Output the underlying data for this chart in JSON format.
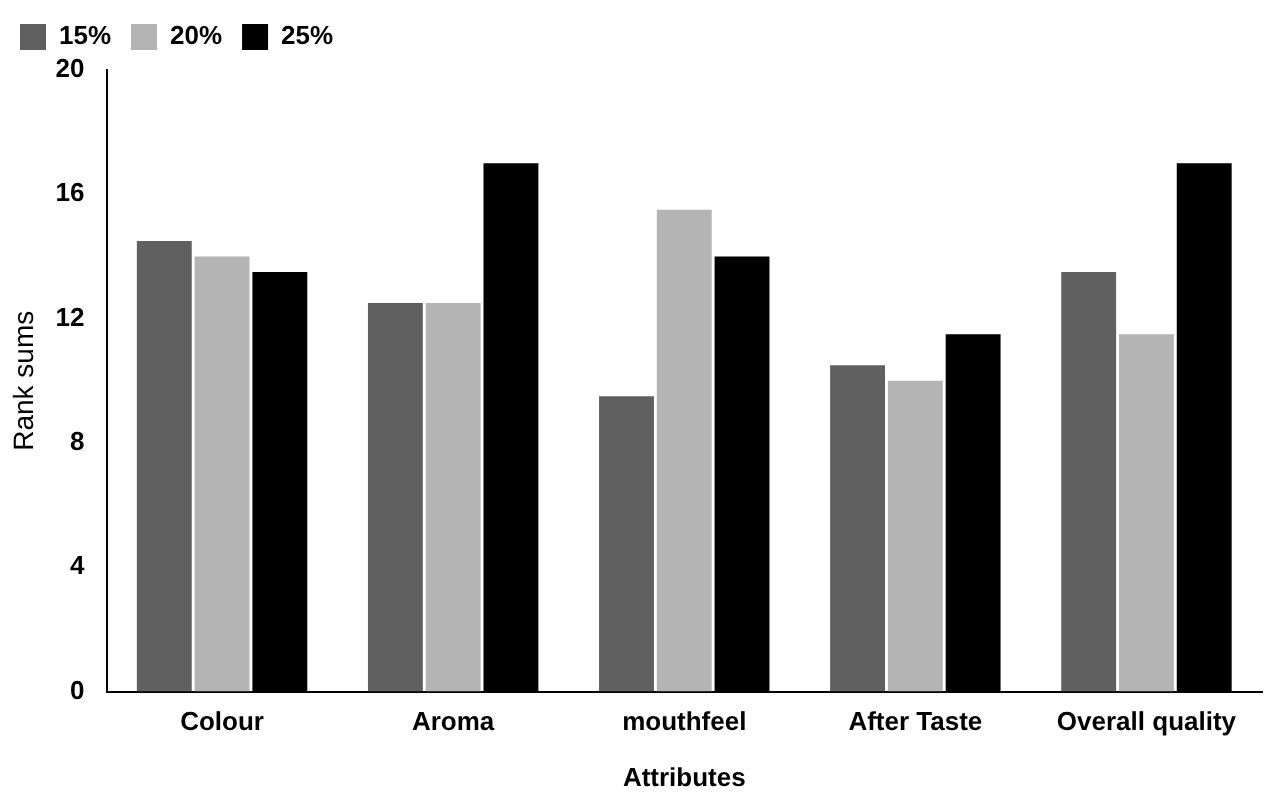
{
  "chart_data": {
    "type": "bar",
    "xlabel": "Attributes",
    "ylabel": "Rank sums",
    "categories": [
      "Colour",
      "Aroma",
      "mouthfeel",
      "After Taste",
      "Overall quality"
    ],
    "series": [
      {
        "name": "15%",
        "color": "#606060",
        "values": [
          14.5,
          12.5,
          9.5,
          10.5,
          13.5
        ]
      },
      {
        "name": "20%",
        "color": "#b4b4b4",
        "values": [
          14,
          12.5,
          15.5,
          10,
          11.5
        ]
      },
      {
        "name": "25%",
        "color": "#000000",
        "values": [
          13.5,
          17,
          14,
          11.5,
          17
        ]
      }
    ],
    "ylim": [
      0,
      20
    ],
    "yticks": [
      0,
      4,
      8,
      12,
      16,
      20
    ],
    "grid": false,
    "legend": "top left"
  }
}
